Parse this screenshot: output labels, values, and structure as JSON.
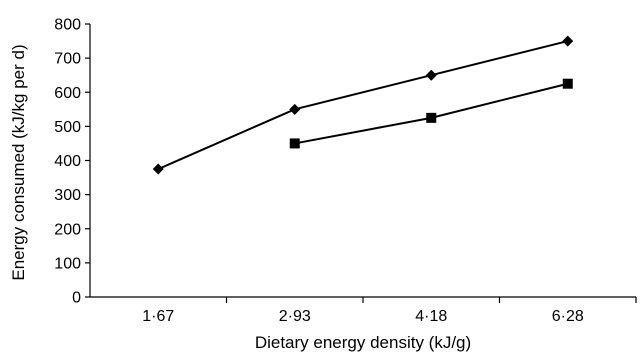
{
  "chart_data": {
    "type": "line",
    "title": "",
    "xlabel": "Dietary energy density (kJ/g)",
    "ylabel": "Energy consumed (kJ/kg per d)",
    "categories": [
      "1·67",
      "2·93",
      "4·18",
      "6·28"
    ],
    "ylim": [
      0,
      800
    ],
    "yticks": [
      0,
      100,
      200,
      300,
      400,
      500,
      600,
      700,
      800
    ],
    "grid": false,
    "legend": "none",
    "series": [
      {
        "marker": "diamond",
        "color": "#000000",
        "values": [
          375,
          550,
          650,
          750
        ]
      },
      {
        "marker": "square",
        "color": "#000000",
        "values": [
          null,
          450,
          525,
          625
        ]
      }
    ]
  }
}
